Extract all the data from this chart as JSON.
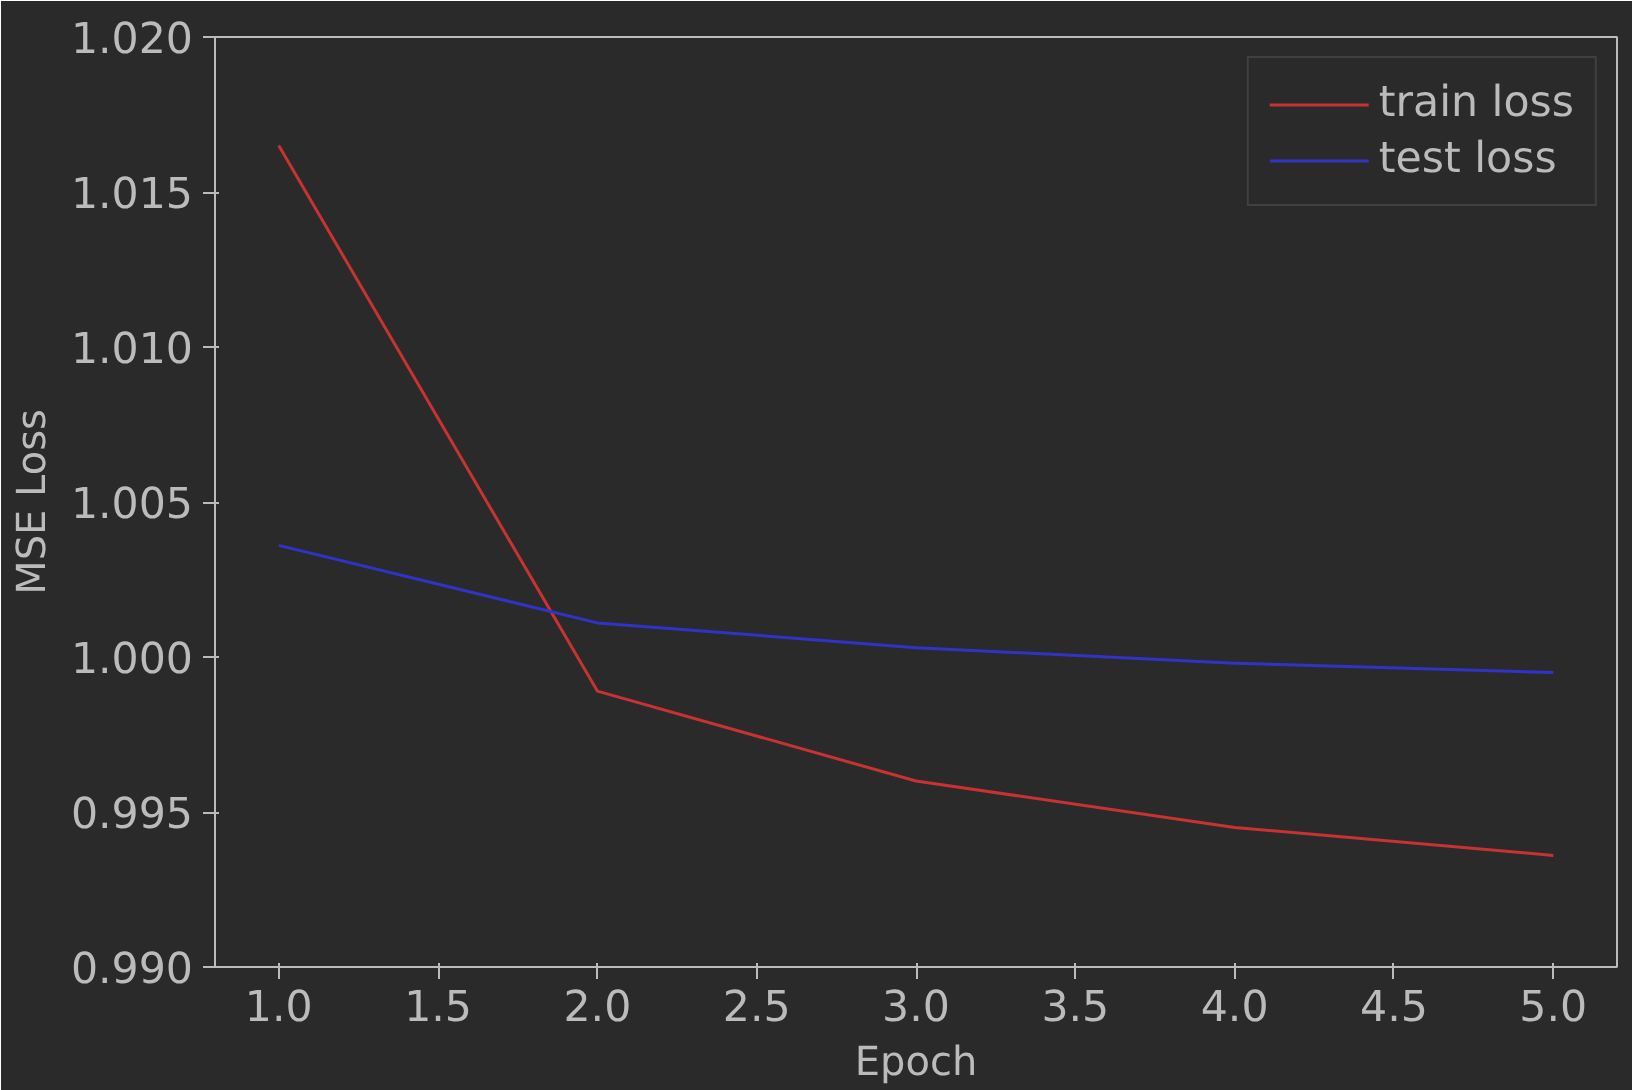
{
  "chart_data": {
    "type": "line",
    "xlabel": "Epoch",
    "ylabel": "MSE Loss",
    "x": [
      1,
      2,
      3,
      4,
      5
    ],
    "series": [
      {
        "name": "train loss",
        "color": "#c83232",
        "values": [
          1.0165,
          0.9989,
          0.996,
          0.9945,
          0.9936
        ]
      },
      {
        "name": "test loss",
        "color": "#3232c8",
        "values": [
          1.0036,
          1.0011,
          1.0003,
          0.9998,
          0.9995
        ]
      }
    ],
    "xlim": [
      0.8,
      5.2
    ],
    "ylim": [
      0.99,
      1.02
    ],
    "xticks": [
      {
        "value": 1,
        "label": "1.0"
      },
      {
        "value": 1.5,
        "label": "1.5"
      },
      {
        "value": 2,
        "label": "2.0"
      },
      {
        "value": 2.5,
        "label": "2.5"
      },
      {
        "value": 3,
        "label": "3.0"
      },
      {
        "value": 3.5,
        "label": "3.5"
      },
      {
        "value": 4,
        "label": "4.0"
      },
      {
        "value": 4.5,
        "label": "4.5"
      },
      {
        "value": 5,
        "label": "5.0"
      }
    ],
    "yticks": [
      {
        "value": 0.99,
        "label": "0.990"
      },
      {
        "value": 0.995,
        "label": "0.995"
      },
      {
        "value": 1.0,
        "label": "1.000"
      },
      {
        "value": 1.005,
        "label": "1.005"
      },
      {
        "value": 1.01,
        "label": "1.010"
      },
      {
        "value": 1.015,
        "label": "1.015"
      },
      {
        "value": 1.02,
        "label": "1.020"
      }
    ],
    "legend": "top right",
    "grid": false
  }
}
